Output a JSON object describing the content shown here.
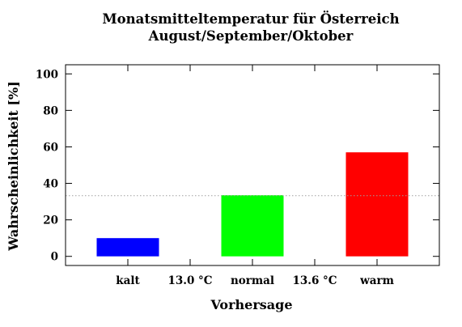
{
  "chart_data": {
    "type": "bar",
    "title_lines": [
      "Monatsmitteltemperatur für Österreich",
      "August/September/Oktober"
    ],
    "xlabel": "Vorhersage",
    "ylabel": "Wahrscheinlichkeit [%]",
    "ylim": [
      -5,
      105
    ],
    "yticks": [
      0,
      20,
      40,
      60,
      80,
      100
    ],
    "categories": [
      "kalt",
      "normal",
      "warm"
    ],
    "values": [
      10,
      33.5,
      57
    ],
    "colors": [
      "#0000ff",
      "#00ff00",
      "#ff0000"
    ],
    "threshold_labels": [
      "13.0 °C",
      "13.6 °C"
    ],
    "reference_line": {
      "value": 33.3,
      "style": "dotted",
      "color": "#a0a0a0"
    },
    "grid": false,
    "legend": "none"
  }
}
